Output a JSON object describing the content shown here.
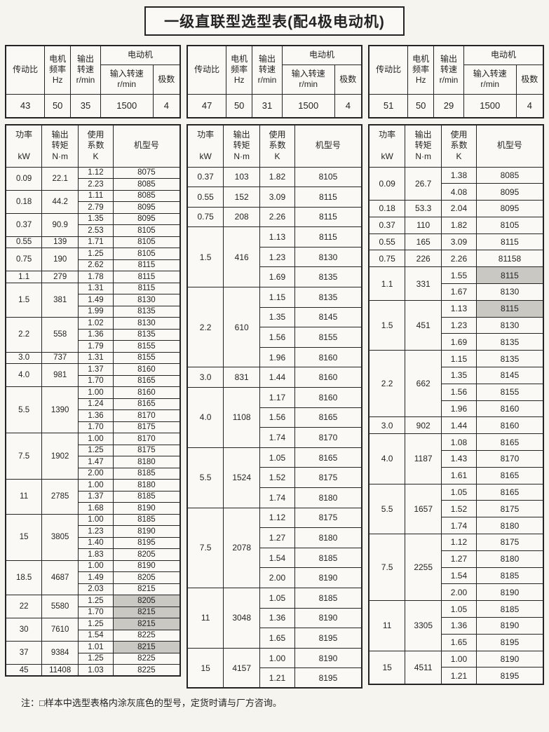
{
  "page": {
    "title": "一级直联型选型表(配4极电动机)",
    "note": "注：□样本中选型表格内涂灰底色的型号，定货时请与厂方咨询。"
  },
  "colors": {
    "ink": "#242424",
    "paper": "#f5f4ef",
    "cell": "#faf9f5",
    "shade": "#c9c8c2"
  },
  "labels": {
    "ratio": "传动比",
    "freq": "电机\n频率\nHz",
    "out_speed": "输出\n转速\nr/min",
    "motor": "电动机",
    "in_speed": "输入转速\nr/min",
    "poles": "极数",
    "power": "功率\n\nkW",
    "torque": "输出\n转矩\nN·m",
    "factor": "使用\n系数\nK",
    "model": "机型号"
  },
  "columns": [
    {
      "header": {
        "ratio": "43",
        "freq": "50",
        "out_speed": "35",
        "in_speed": "1500",
        "poles": "4"
      },
      "groups": [
        {
          "power": "0.09",
          "torque": "22.1",
          "rows": [
            {
              "k": "1.12",
              "model": "8075"
            },
            {
              "k": "2.23",
              "model": "8085"
            }
          ]
        },
        {
          "power": "0.18",
          "torque": "44.2",
          "rows": [
            {
              "k": "1.11",
              "model": "8085"
            },
            {
              "k": "2.79",
              "model": "8095"
            }
          ]
        },
        {
          "power": "0.37",
          "torque": "90.9",
          "rows": [
            {
              "k": "1.35",
              "model": "8095"
            },
            {
              "k": "2.53",
              "model": "8105"
            }
          ]
        },
        {
          "power": "0.55",
          "torque": "139",
          "rows": [
            {
              "k": "1.71",
              "model": "8105"
            }
          ]
        },
        {
          "power": "0.75",
          "torque": "190",
          "rows": [
            {
              "k": "1.25",
              "model": "8105"
            },
            {
              "k": "2.62",
              "model": "8115"
            }
          ]
        },
        {
          "power": "1.1",
          "torque": "279",
          "rows": [
            {
              "k": "1.78",
              "model": "8115"
            }
          ]
        },
        {
          "power": "1.5",
          "torque": "381",
          "rows": [
            {
              "k": "1.31",
              "model": "8115"
            },
            {
              "k": "1.49",
              "model": "8130"
            },
            {
              "k": "1.99",
              "model": "8135"
            }
          ]
        },
        {
          "power": "2.2",
          "torque": "558",
          "rows": [
            {
              "k": "1.02",
              "model": "8130"
            },
            {
              "k": "1.36",
              "model": "8135"
            },
            {
              "k": "1.79",
              "model": "8155"
            }
          ]
        },
        {
          "power": "3.0",
          "torque": "737",
          "rows": [
            {
              "k": "1.31",
              "model": "8155"
            }
          ]
        },
        {
          "power": "4.0",
          "torque": "981",
          "rows": [
            {
              "k": "1.37",
              "model": "8160"
            },
            {
              "k": "1.70",
              "model": "8165"
            }
          ]
        },
        {
          "power": "5.5",
          "torque": "1390",
          "rows": [
            {
              "k": "1.00",
              "model": "8160"
            },
            {
              "k": "1.24",
              "model": "8165"
            },
            {
              "k": "1.36",
              "model": "8170"
            },
            {
              "k": "1.70",
              "model": "8175"
            }
          ]
        },
        {
          "power": "7.5",
          "torque": "1902",
          "rows": [
            {
              "k": "1.00",
              "model": "8170"
            },
            {
              "k": "1.25",
              "model": "8175"
            },
            {
              "k": "1.47",
              "model": "8180"
            },
            {
              "k": "2.00",
              "model": "8185"
            }
          ]
        },
        {
          "power": "11",
          "torque": "2785",
          "rows": [
            {
              "k": "1.00",
              "model": "8180"
            },
            {
              "k": "1.37",
              "model": "8185"
            },
            {
              "k": "1.68",
              "model": "8190"
            }
          ]
        },
        {
          "power": "15",
          "torque": "3805",
          "rows": [
            {
              "k": "1.00",
              "model": "8185"
            },
            {
              "k": "1.23",
              "model": "8190"
            },
            {
              "k": "1.40",
              "model": "8195"
            },
            {
              "k": "1.83",
              "model": "8205"
            }
          ]
        },
        {
          "power": "18.5",
          "torque": "4687",
          "rows": [
            {
              "k": "1.00",
              "model": "8190"
            },
            {
              "k": "1.49",
              "model": "8205"
            },
            {
              "k": "2.03",
              "model": "8215"
            }
          ]
        },
        {
          "power": "22",
          "torque": "5580",
          "rows": [
            {
              "k": "1.25",
              "model": "8205",
              "shaded": true
            },
            {
              "k": "1.70",
              "model": "8215",
              "shaded": true
            }
          ]
        },
        {
          "power": "30",
          "torque": "7610",
          "rows": [
            {
              "k": "1.25",
              "model": "8215",
              "shaded": true
            },
            {
              "k": "1.54",
              "model": "8225"
            }
          ]
        },
        {
          "power": "37",
          "torque": "9384",
          "rows": [
            {
              "k": "1.01",
              "model": "8215",
              "shaded": true
            },
            {
              "k": "1.25",
              "model": "8225"
            }
          ]
        },
        {
          "power": "45",
          "torque": "11408",
          "rows": [
            {
              "k": "1.03",
              "model": "8225"
            }
          ]
        }
      ]
    },
    {
      "header": {
        "ratio": "47",
        "freq": "50",
        "out_speed": "31",
        "in_speed": "1500",
        "poles": "4"
      },
      "groups": [
        {
          "power": "0.37",
          "torque": "103",
          "rows": [
            {
              "k": "1.82",
              "model": "8105"
            }
          ]
        },
        {
          "power": "0.55",
          "torque": "152",
          "rows": [
            {
              "k": "3.09",
              "model": "8115"
            }
          ]
        },
        {
          "power": "0.75",
          "torque": "208",
          "rows": [
            {
              "k": "2.26",
              "model": "8115"
            }
          ]
        },
        {
          "power": "1.5",
          "torque": "416",
          "rows": [
            {
              "k": "1.13",
              "model": "8115"
            },
            {
              "k": "1.23",
              "model": "8130"
            },
            {
              "k": "1.69",
              "model": "8135"
            }
          ]
        },
        {
          "power": "2.2",
          "torque": "610",
          "rows": [
            {
              "k": "1.15",
              "model": "8135"
            },
            {
              "k": "1.35",
              "model": "8145"
            },
            {
              "k": "1.56",
              "model": "8155"
            },
            {
              "k": "1.96",
              "model": "8160"
            }
          ]
        },
        {
          "power": "3.0",
          "torque": "831",
          "rows": [
            {
              "k": "1.44",
              "model": "8160"
            }
          ]
        },
        {
          "power": "4.0",
          "torque": "1108",
          "rows": [
            {
              "k": "1.17",
              "model": "8160"
            },
            {
              "k": "1.56",
              "model": "8165"
            },
            {
              "k": "1.74",
              "model": "8170"
            }
          ]
        },
        {
          "power": "5.5",
          "torque": "1524",
          "rows": [
            {
              "k": "1.05",
              "model": "8165"
            },
            {
              "k": "1.52",
              "model": "8175"
            },
            {
              "k": "1.74",
              "model": "8180"
            }
          ]
        },
        {
          "power": "7.5",
          "torque": "2078",
          "rows": [
            {
              "k": "1.12",
              "model": "8175"
            },
            {
              "k": "1.27",
              "model": "8180"
            },
            {
              "k": "1.54",
              "model": "8185"
            },
            {
              "k": "2.00",
              "model": "8190"
            }
          ]
        },
        {
          "power": "11",
          "torque": "3048",
          "rows": [
            {
              "k": "1.05",
              "model": "8185"
            },
            {
              "k": "1.36",
              "model": "8190"
            },
            {
              "k": "1.65",
              "model": "8195"
            }
          ]
        },
        {
          "power": "15",
          "torque": "4157",
          "rows": [
            {
              "k": "1.00",
              "model": "8190"
            },
            {
              "k": "1.21",
              "model": "8195"
            }
          ]
        }
      ]
    },
    {
      "header": {
        "ratio": "51",
        "freq": "50",
        "out_speed": "29",
        "in_speed": "1500",
        "poles": "4"
      },
      "groups": [
        {
          "power": "0.09",
          "torque": "26.7",
          "rows": [
            {
              "k": "1.38",
              "model": "8085"
            },
            {
              "k": "4.08",
              "model": "8095"
            }
          ]
        },
        {
          "power": "0.18",
          "torque": "53.3",
          "rows": [
            {
              "k": "2.04",
              "model": "8095"
            }
          ]
        },
        {
          "power": "0.37",
          "torque": "110",
          "rows": [
            {
              "k": "1.82",
              "model": "8105"
            }
          ]
        },
        {
          "power": "0.55",
          "torque": "165",
          "rows": [
            {
              "k": "3.09",
              "model": "8115"
            }
          ]
        },
        {
          "power": "0.75",
          "torque": "226",
          "rows": [
            {
              "k": "2.26",
              "model": "81158"
            }
          ]
        },
        {
          "power": "1.1",
          "torque": "331",
          "rows": [
            {
              "k": "1.55",
              "model": "8115",
              "shaded": true
            },
            {
              "k": "1.67",
              "model": "8130"
            }
          ]
        },
        {
          "power": "1.5",
          "torque": "451",
          "rows": [
            {
              "k": "1.13",
              "model": "8115",
              "shaded": true
            },
            {
              "k": "1.23",
              "model": "8130"
            },
            {
              "k": "1.69",
              "model": "8135"
            }
          ]
        },
        {
          "power": "2.2",
          "torque": "662",
          "rows": [
            {
              "k": "1.15",
              "model": "8135"
            },
            {
              "k": "1.35",
              "model": "8145"
            },
            {
              "k": "1.56",
              "model": "8155"
            },
            {
              "k": "1.96",
              "model": "8160"
            }
          ]
        },
        {
          "power": "3.0",
          "torque": "902",
          "rows": [
            {
              "k": "1.44",
              "model": "8160"
            }
          ]
        },
        {
          "power": "4.0",
          "torque": "1187",
          "rows": [
            {
              "k": "1.08",
              "model": "8165"
            },
            {
              "k": "1.43",
              "model": "8170"
            },
            {
              "k": "1.61",
              "model": "8165"
            }
          ]
        },
        {
          "power": "5.5",
          "torque": "1657",
          "rows": [
            {
              "k": "1.05",
              "model": "8165"
            },
            {
              "k": "1.52",
              "model": "8175"
            },
            {
              "k": "1.74",
              "model": "8180"
            }
          ]
        },
        {
          "power": "7.5",
          "torque": "2255",
          "rows": [
            {
              "k": "1.12",
              "model": "8175"
            },
            {
              "k": "1.27",
              "model": "8180"
            },
            {
              "k": "1.54",
              "model": "8185"
            },
            {
              "k": "2.00",
              "model": "8190"
            }
          ]
        },
        {
          "power": "11",
          "torque": "3305",
          "rows": [
            {
              "k": "1.05",
              "model": "8185"
            },
            {
              "k": "1.36",
              "model": "8190"
            },
            {
              "k": "1.65",
              "model": "8195"
            }
          ]
        },
        {
          "power": "15",
          "torque": "4511",
          "rows": [
            {
              "k": "1.00",
              "model": "8190"
            },
            {
              "k": "1.21",
              "model": "8195"
            }
          ]
        }
      ]
    }
  ]
}
